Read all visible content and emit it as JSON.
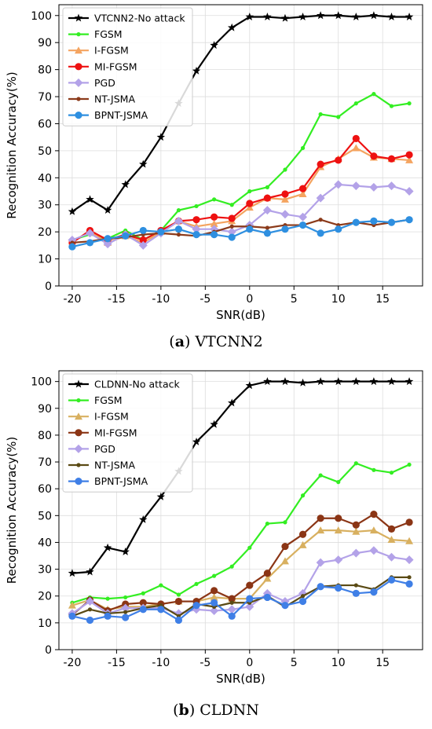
{
  "colors": {
    "black": "#000000",
    "green": "#33ee22",
    "orange": "#f4a460",
    "red": "#ee1111",
    "lavender": "#b3a2e8",
    "brown": "#8b3a1a",
    "blue": "#2e8fe0",
    "tan": "#d8b060",
    "darkbrown": "#8b3515",
    "olive": "#5a4a14",
    "blue2": "#3f7fe6"
  },
  "panels": [
    {
      "caption_label": "a",
      "caption_text": "VTCNN2",
      "chart_data": {
        "type": "line",
        "xlabel": "SNR(dB)",
        "ylabel": "Recognition Accuracy(%)",
        "xlim": [
          -21.5,
          19.5
        ],
        "ylim": [
          0,
          104
        ],
        "xticks": [
          -20,
          -15,
          -10,
          -5,
          0,
          5,
          10,
          15
        ],
        "yticks": [
          0,
          10,
          20,
          30,
          40,
          50,
          60,
          70,
          80,
          90,
          100
        ],
        "grid": true,
        "legend_position": "top-left",
        "x": [
          -20,
          -18,
          -16,
          -14,
          -12,
          -10,
          -8,
          -6,
          -4,
          -2,
          0,
          2,
          4,
          6,
          8,
          10,
          12,
          14,
          16,
          18
        ],
        "series": [
          {
            "name": "VTCNN2-No attack",
            "color": "black",
            "marker": "star",
            "values": [
              27.5,
              32,
              28,
              37.5,
              45,
              55,
              67.5,
              79.5,
              89,
              95.5,
              99.5,
              99.5,
              99,
              99.5,
              100,
              100,
              99.5,
              100,
              99.5,
              99.5
            ]
          },
          {
            "name": "FGSM",
            "color": "green",
            "marker": "dot",
            "values": [
              17,
              19,
              17.5,
              20.5,
              17,
              20.5,
              28,
              29.5,
              32,
              30,
              35,
              36.5,
              43,
              51,
              63.5,
              62.5,
              67.5,
              71,
              66.5,
              67.5
            ]
          },
          {
            "name": "I-FGSM",
            "color": "orange",
            "marker": "triangle",
            "values": [
              16.5,
              20,
              16,
              18.5,
              16,
              20,
              24,
              22,
              23,
              24,
              29,
              32.5,
              32,
              34,
              44,
              47,
              51,
              47.5,
              47,
              46.5
            ]
          },
          {
            "name": "MI-FGSM",
            "color": "red",
            "marker": "circle",
            "values": [
              16,
              20.5,
              17,
              19,
              17,
              20.5,
              24,
              24.5,
              25.5,
              25,
              30.5,
              32.5,
              34,
              36,
              45,
              46.5,
              54.5,
              48,
              47,
              48.5
            ]
          },
          {
            "name": "PGD",
            "color": "lavender",
            "marker": "diamond",
            "values": [
              17,
              19.5,
              15.5,
              19,
              15,
              19.5,
              24,
              21,
              21,
              20,
              22.5,
              28,
              26.5,
              25.5,
              32.5,
              37.5,
              37,
              36.5,
              37,
              35
            ]
          },
          {
            "name": "NT-JSMA",
            "color": "brown",
            "marker": "dot",
            "values": [
              16,
              16.5,
              17.5,
              18,
              19,
              19.5,
              19,
              18.5,
              20,
              22,
              22,
              21.5,
              22.5,
              22.5,
              24.5,
              22.5,
              23.5,
              22.5,
              23.5,
              24.5
            ]
          },
          {
            "name": "BPNT-JSMA",
            "color": "blue",
            "marker": "circle",
            "values": [
              14.5,
              16,
              17.5,
              18.5,
              20.5,
              20,
              21,
              19,
              19,
              18,
              21,
              19.5,
              21,
              22.5,
              19.5,
              21,
              23.5,
              24,
              23.5,
              24.5
            ]
          }
        ]
      }
    },
    {
      "caption_label": "b",
      "caption_text": "CLDNN",
      "chart_data": {
        "type": "line",
        "xlabel": "SNR(dB)",
        "ylabel": "Recognition Accuracy(%)",
        "xlim": [
          -21.5,
          19.5
        ],
        "ylim": [
          0,
          104
        ],
        "xticks": [
          -20,
          -15,
          -10,
          -5,
          0,
          5,
          10,
          15
        ],
        "yticks": [
          0,
          10,
          20,
          30,
          40,
          50,
          60,
          70,
          80,
          90,
          100
        ],
        "grid": true,
        "legend_position": "top-left",
        "x": [
          -20,
          -18,
          -16,
          -14,
          -12,
          -10,
          -8,
          -6,
          -4,
          -2,
          0,
          2,
          4,
          6,
          8,
          10,
          12,
          14,
          16,
          18
        ],
        "series": [
          {
            "name": "CLDNN-No attack",
            "color": "black",
            "marker": "star",
            "values": [
              28.5,
              29,
              38,
              36.5,
              48.5,
              57,
              66.5,
              77.5,
              84,
              92,
              98.5,
              100,
              100,
              99.5,
              100,
              100,
              100,
              100,
              100,
              100
            ]
          },
          {
            "name": "FGSM",
            "color": "green",
            "marker": "dot",
            "values": [
              17.5,
              19.5,
              19,
              19.5,
              21,
              24,
              20.5,
              24.5,
              27.5,
              31,
              38,
              47,
              47.5,
              57.5,
              65,
              62.5,
              69.5,
              67,
              66,
              69
            ]
          },
          {
            "name": "I-FGSM",
            "color": "tan",
            "marker": "triangle",
            "values": [
              16.5,
              18.5,
              15,
              16,
              16,
              17,
              18,
              18,
              19.5,
              19,
              19,
              26.5,
              33,
              39,
              44.5,
              44.5,
              44,
              44.5,
              41,
              40.5
            ]
          },
          {
            "name": "MI-FGSM",
            "color": "darkbrown",
            "marker": "circle",
            "values": [
              13,
              18.5,
              14.5,
              17,
              17.5,
              17,
              18,
              18,
              22,
              19,
              24,
              28.5,
              38.5,
              43,
              49,
              49,
              46.5,
              50.5,
              45,
              47.5
            ]
          },
          {
            "name": "PGD",
            "color": "lavender",
            "marker": "diamond",
            "values": [
              13.5,
              18,
              13.5,
              15.5,
              15.5,
              15.5,
              13.5,
              15,
              14.5,
              15,
              16,
              21,
              18,
              21,
              32.5,
              33.5,
              36,
              37,
              34.5,
              33.5
            ]
          },
          {
            "name": "NT-JSMA",
            "color": "olive",
            "marker": "dot",
            "values": [
              12.5,
              15,
              13.5,
              14,
              15.5,
              16.5,
              12.5,
              17,
              16,
              17.5,
              17.5,
              20,
              16,
              20,
              23.5,
              24,
              24,
              22.5,
              27,
              27
            ]
          },
          {
            "name": "BPNT-JSMA",
            "color": "blue2",
            "marker": "circle",
            "values": [
              12.5,
              11,
              12.5,
              12,
              15,
              15,
              11,
              16.5,
              17.5,
              12.5,
              19,
              19.5,
              16.5,
              18,
              23.5,
              23,
              21,
              21.5,
              26,
              24.5
            ]
          }
        ]
      }
    }
  ]
}
